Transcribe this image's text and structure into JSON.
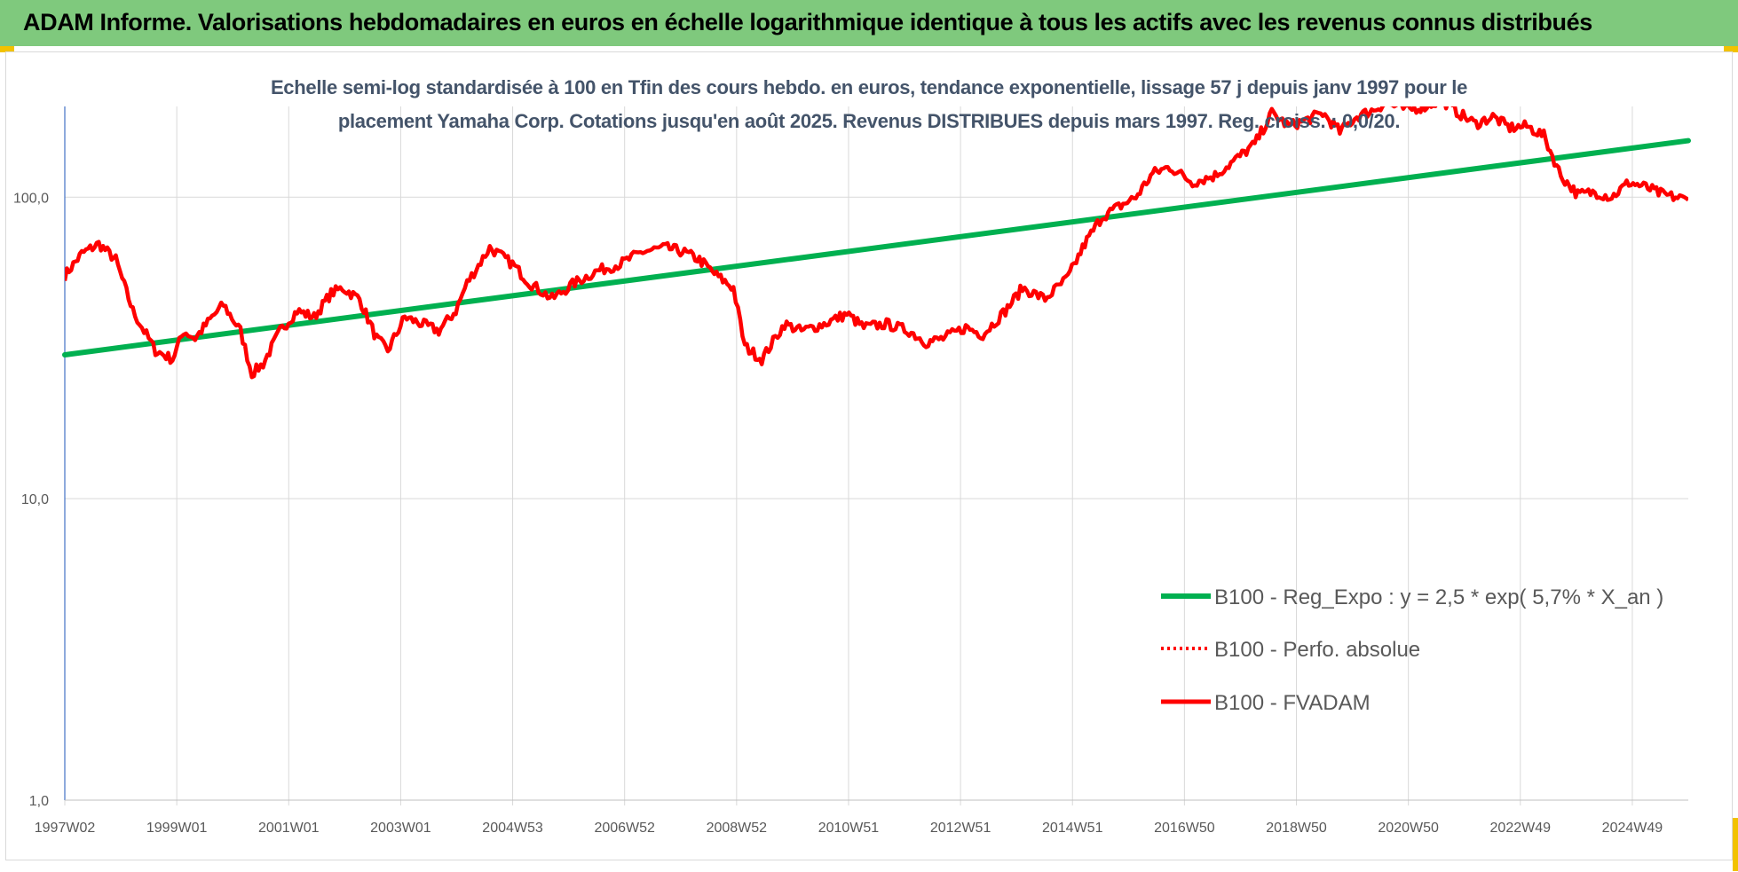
{
  "banner": {
    "title": "ADAM Informe. Valorisations hebdomadaires en euros en échelle logarithmique identique à tous les actifs avec les revenus connus distribués"
  },
  "colors": {
    "banner_bg": "#7fc97d",
    "corner_accent": "#f2c200",
    "trend_line": "#00b050",
    "price_line": "#ff0000",
    "grid": "#d9d9d9",
    "subtitle_text": "#44546a",
    "axis_text": "#595959"
  },
  "chart_data": {
    "type": "line",
    "title_line1": "Echelle semi-log standardisée à 100 en Tfin des cours hebdo. en euros, tendance exponentielle, lissage 57 j depuis janv 1997 pour le",
    "title_line2": "placement Yamaha Corp. Cotations jusqu'en août 2025. Revenus DISTRIBUES depuis mars 1997. Reg. croiss. : 0,0/20.",
    "y_scale": "log",
    "ylim": [
      1,
      200
    ],
    "y_ticks": [
      1,
      10,
      100
    ],
    "y_tick_labels": [
      "1,0",
      "10,0",
      "100,0"
    ],
    "x_ticks": [
      "1997W02",
      "1999W01",
      "2001W01",
      "2003W01",
      "2004W53",
      "2006W52",
      "2008W52",
      "2010W51",
      "2012W51",
      "2014W51",
      "2016W50",
      "2018W50",
      "2020W50",
      "2022W49",
      "2024W49"
    ],
    "x_range_years": [
      1997.0,
      2025.65
    ],
    "grid": "vertical and horizontal",
    "legend_position": "bottom-right",
    "legend": [
      {
        "label": "B100 - Reg_Expo : y = 2,5 * exp( 5,7% *  X_an )",
        "style": "solid-green"
      },
      {
        "label": "B100 - Perfo. absolue",
        "style": "dotted-red"
      },
      {
        "label": "B100 - FVADAM",
        "style": "solid-red"
      }
    ],
    "series": [
      {
        "name": "B100 - Reg_Expo : y = 2,5 * exp( 5,7% *  X_an )",
        "x": [
          1997.0,
          2025.65
        ],
        "y": [
          30,
          154
        ]
      },
      {
        "name": "B100 - FVADAM",
        "x": [
          1997.0,
          1997.3,
          1997.6,
          1997.9,
          1998.2,
          1998.4,
          1998.6,
          1998.9,
          1999.1,
          1999.3,
          1999.6,
          1999.8,
          2000.1,
          2000.3,
          2000.5,
          2000.8,
          2001.1,
          2001.4,
          2001.7,
          2001.9,
          2002.2,
          2002.5,
          2002.7,
          2003.0,
          2003.3,
          2003.6,
          2003.9,
          2004.1,
          2004.5,
          2004.9,
          2005.2,
          2005.6,
          2006.0,
          2006.4,
          2006.8,
          2007.2,
          2007.6,
          2007.9,
          2008.2,
          2008.5,
          2008.8,
          2009.0,
          2009.3,
          2009.7,
          2010.0,
          2010.4,
          2010.8,
          2011.1,
          2011.5,
          2011.9,
          2012.2,
          2012.5,
          2012.9,
          2013.2,
          2013.6,
          2013.9,
          2014.3,
          2014.7,
          2015.0,
          2015.3,
          2015.6,
          2015.9,
          2016.2,
          2016.5,
          2016.9,
          2017.3,
          2017.7,
          2018.0,
          2018.3,
          2018.6,
          2018.9,
          2019.2,
          2019.5,
          2019.8,
          2020.1,
          2020.3,
          2020.7,
          2021.0,
          2021.3,
          2021.6,
          2021.9,
          2022.2,
          2022.5,
          2022.8,
          2023.1,
          2023.4,
          2023.7,
          2024.0,
          2024.3,
          2024.6,
          2024.9,
          2025.2,
          2025.65
        ],
        "y": [
          55,
          65,
          70,
          62,
          42,
          36,
          31,
          29,
          36,
          34,
          40,
          44,
          36,
          26,
          28,
          36,
          42,
          40,
          48,
          50,
          46,
          34,
          31,
          40,
          38,
          36,
          42,
          52,
          68,
          60,
          52,
          46,
          52,
          57,
          60,
          66,
          68,
          66,
          62,
          55,
          50,
          32,
          29,
          38,
          36,
          38,
          41,
          37,
          38,
          36,
          33,
          34,
          37,
          35,
          42,
          50,
          46,
          54,
          70,
          86,
          93,
          100,
          120,
          126,
          112,
          118,
          135,
          150,
          190,
          172,
          180,
          190,
          165,
          185,
          195,
          205,
          195,
          200,
          210,
          190,
          175,
          185,
          170,
          172,
          160,
          118,
          102,
          104,
          100,
          112,
          108,
          102,
          98
        ]
      }
    ]
  }
}
